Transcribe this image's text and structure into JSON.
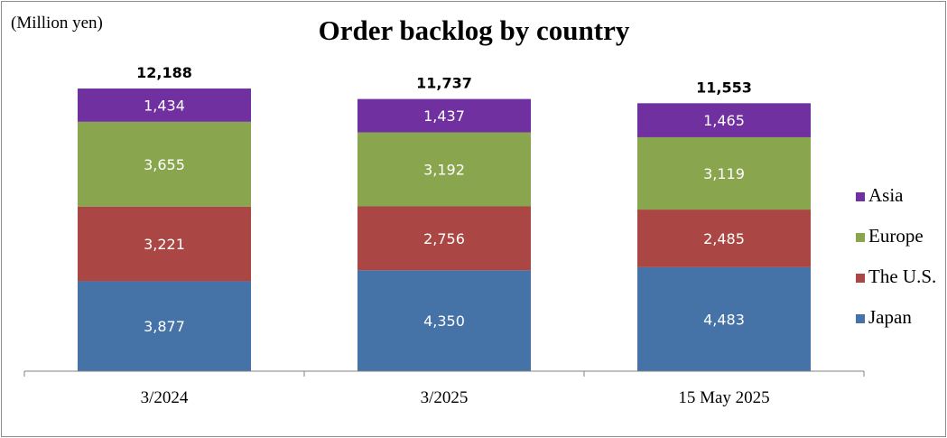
{
  "chart_data": {
    "type": "bar",
    "stacked": true,
    "title": "Order backlog by country",
    "unit_label": "(Million yen)",
    "categories": [
      "3/2024",
      "3/2025",
      "15 May 2025"
    ],
    "totals": [
      "12,188",
      "11,737",
      "11,553"
    ],
    "series": [
      {
        "name": "Japan",
        "color": "#4572a7",
        "values": [
          3877,
          4350,
          4483
        ],
        "labels": [
          "3,877",
          "4,350",
          "4,483"
        ]
      },
      {
        "name": "The U.S.",
        "color": "#aa4643",
        "values": [
          3221,
          2756,
          2485
        ],
        "labels": [
          "3,221",
          "2,756",
          "2,485"
        ]
      },
      {
        "name": "Europe",
        "color": "#89a54e",
        "values": [
          3655,
          3192,
          3119
        ],
        "labels": [
          "3,655",
          "3,192",
          "3,119"
        ]
      },
      {
        "name": "Asia",
        "color": "#7030a0",
        "values": [
          1434,
          1437,
          1465
        ],
        "labels": [
          "1,434",
          "1,437",
          "1,465"
        ]
      }
    ],
    "legend_order": [
      "Asia",
      "Europe",
      "The U.S.",
      "Japan"
    ],
    "legend_position": "right",
    "ylim": [
      0,
      12188
    ],
    "grid": false
  }
}
